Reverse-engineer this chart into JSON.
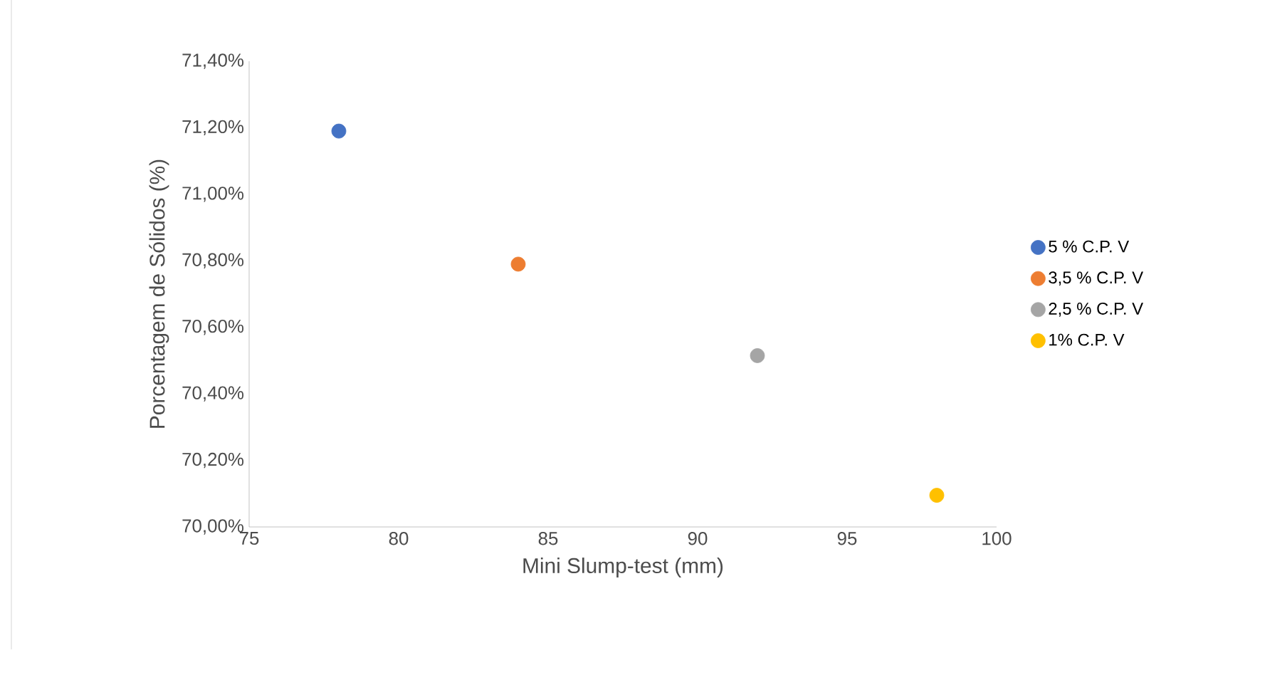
{
  "chart_data": {
    "type": "scatter",
    "xlabel": "Mini Slump-test (mm)",
    "ylabel": "Porcentagem de Sólidos (%)",
    "xlim": [
      75,
      100
    ],
    "xticks": [
      75,
      80,
      85,
      90,
      95,
      100
    ],
    "ylim": [
      70.0,
      71.4
    ],
    "yticks": [
      {
        "value": 70.0,
        "label": "70,00%"
      },
      {
        "value": 70.2,
        "label": "70,20%"
      },
      {
        "value": 70.4,
        "label": "70,40%"
      },
      {
        "value": 70.6,
        "label": "70,60%"
      },
      {
        "value": 70.8,
        "label": "70,80%"
      },
      {
        "value": 71.0,
        "label": "71,00%"
      },
      {
        "value": 71.2,
        "label": "71,20%"
      },
      {
        "value": 71.4,
        "label": "71,40%"
      }
    ],
    "marker": "circle",
    "legend": "right",
    "grid": false,
    "series": [
      {
        "name": "5 % C.P. V",
        "color": "#4472c4",
        "x": [
          78
        ],
        "values": [
          71.19
        ]
      },
      {
        "name": "3,5 % C.P. V",
        "color": "#ed7d31",
        "x": [
          84
        ],
        "values": [
          70.79
        ]
      },
      {
        "name": "2,5 % C.P. V",
        "color": "#a5a5a5",
        "x": [
          92
        ],
        "values": [
          70.515
        ]
      },
      {
        "name": "1% C.P. V",
        "color": "#ffc000",
        "x": [
          98
        ],
        "values": [
          70.095
        ]
      }
    ]
  }
}
